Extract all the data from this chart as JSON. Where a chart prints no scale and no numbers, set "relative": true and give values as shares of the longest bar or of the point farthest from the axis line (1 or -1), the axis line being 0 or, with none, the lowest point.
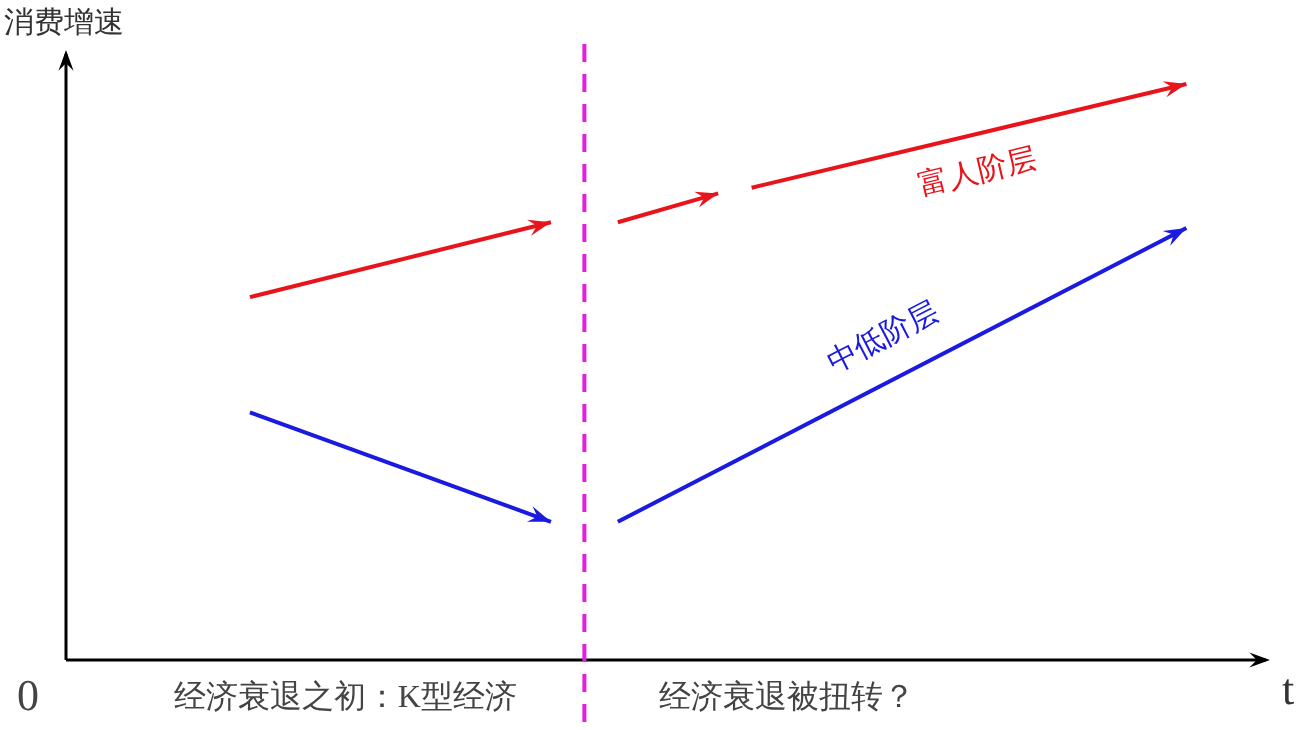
{
  "chart_data": {
    "type": "line",
    "relative": true,
    "ylabel": "消费增速",
    "xlabel": "t",
    "categories": [
      null,
      null,
      null,
      null,
      null,
      null,
      null,
      null,
      null,
      null,
      null,
      null,
      null,
      null,
      null,
      null,
      null,
      null,
      null,
      null,
      null,
      null,
      null,
      null,
      null,
      null,
      null,
      null,
      null,
      null,
      null,
      null,
      null,
      null,
      null,
      null
    ],
    "series": [
      {
        "color": "#e8141b",
        "values": [
          null,
          null,
          null,
          null,
          null,
          0.63,
          null,
          null,
          null,
          null,
          null,
          null,
          null,
          null,
          0.76,
          null,
          null,
          null,
          null,
          null,
          null,
          null,
          null,
          null,
          null,
          null,
          null,
          null,
          null,
          null,
          null,
          null,
          null,
          null,
          null,
          null
        ]
      },
      {
        "color": "#e8141b",
        "values": [
          null,
          null,
          null,
          null,
          null,
          null,
          null,
          null,
          null,
          null,
          null,
          null,
          null,
          null,
          null,
          null,
          0.76,
          null,
          null,
          0.81,
          null,
          null,
          null,
          null,
          null,
          null,
          null,
          null,
          null,
          null,
          null,
          null,
          null,
          null,
          null,
          null
        ]
      },
      {
        "name": "富人阶层",
        "color": "#e8141b",
        "values": [
          null,
          null,
          null,
          null,
          null,
          null,
          null,
          null,
          null,
          null,
          null,
          null,
          null,
          null,
          null,
          null,
          null,
          null,
          null,
          null,
          0.82,
          null,
          null,
          null,
          null,
          null,
          null,
          null,
          null,
          null,
          null,
          null,
          null,
          1,
          null,
          null
        ]
      },
      {
        "color": "#1a1ae0",
        "values": [
          null,
          null,
          null,
          null,
          null,
          0.43,
          null,
          null,
          null,
          null,
          null,
          null,
          null,
          null,
          0.24,
          null,
          null,
          null,
          null,
          null,
          null,
          null,
          null,
          null,
          null,
          null,
          null,
          null,
          null,
          null,
          null,
          null,
          null,
          null,
          null,
          null
        ]
      },
      {
        "name": "中低阶层",
        "color": "#1a1ae0",
        "values": [
          null,
          null,
          null,
          null,
          null,
          null,
          null,
          null,
          null,
          null,
          null,
          null,
          null,
          null,
          null,
          null,
          0.24,
          null,
          null,
          null,
          null,
          null,
          null,
          null,
          null,
          null,
          null,
          null,
          null,
          null,
          null,
          null,
          null,
          0.75,
          null,
          null
        ]
      }
    ],
    "annotations": [
      "0",
      "经济衰退之初：K型经济",
      "经济衰退被扭转？"
    ]
  }
}
